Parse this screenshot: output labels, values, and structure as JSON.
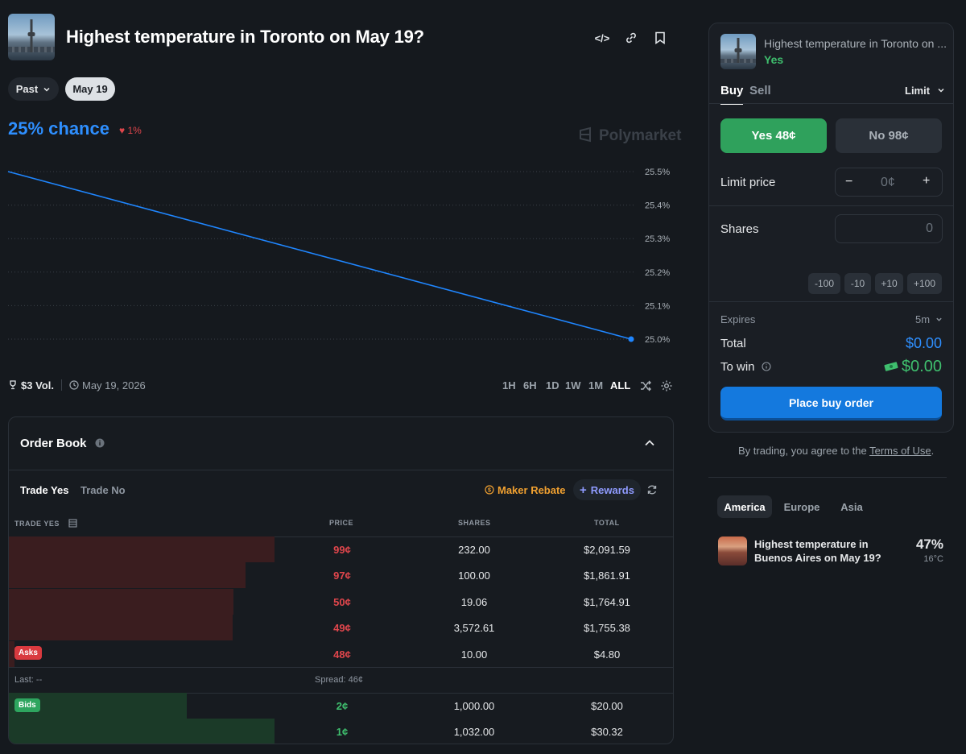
{
  "header": {
    "title": "Highest temperature in Toronto on May 19?",
    "code_icon": "</>",
    "link_icon": "🔗",
    "bookmark_icon": "🔖"
  },
  "filters": {
    "past_label": "Past",
    "date_label": "May 19"
  },
  "market": {
    "chance": "25% chance",
    "change": "1%",
    "watermark": "Polymarket"
  },
  "chart_data": {
    "type": "line",
    "x": [
      "start",
      "end"
    ],
    "series": [
      {
        "values": [
          25.5,
          25.0
        ]
      }
    ],
    "y_ticks": [
      "25.5%",
      "25.4%",
      "25.3%",
      "25.2%",
      "25.1%",
      "25.0%"
    ],
    "ylim": [
      25.0,
      25.5
    ],
    "grid": true,
    "color": "#1f86ff"
  },
  "stats": {
    "volume": "$3 Vol.",
    "date": "May 19, 2026"
  },
  "ranges": [
    "1H",
    "6H",
    "1D",
    "1W",
    "1M",
    "ALL"
  ],
  "order_book": {
    "title": "Order Book",
    "tabs": [
      "Trade Yes",
      "Trade No"
    ],
    "maker_rebate": "Maker Rebate",
    "rewards": "Rewards",
    "columns": [
      "TRADE YES",
      "PRICE",
      "SHARES",
      "TOTAL"
    ],
    "asks": [
      {
        "price": "99¢",
        "shares": "232.00",
        "total": "$2,091.59",
        "depth": 0.4
      },
      {
        "price": "97¢",
        "shares": "100.00",
        "total": "$1,861.91",
        "depth": 0.356
      },
      {
        "price": "50¢",
        "shares": "19.06",
        "total": "$1,764.91",
        "depth": 0.338
      },
      {
        "price": "49¢",
        "shares": "3,572.61",
        "total": "$1,755.38",
        "depth": 0.337
      },
      {
        "price": "48¢",
        "shares": "10.00",
        "total": "$4.80",
        "depth": 0.008
      }
    ],
    "asks_label": "Asks",
    "last": "Last: --",
    "spread": "Spread: 46¢",
    "bids_label": "Bids",
    "bids": [
      {
        "price": "2¢",
        "shares": "1,000.00",
        "total": "$20.00",
        "depth": 0.268
      },
      {
        "price": "1¢",
        "shares": "1,032.00",
        "total": "$30.32",
        "depth": 0.4
      }
    ]
  },
  "trade": {
    "market_title": "Highest temperature in Toronto on ...",
    "outcome": "Yes",
    "tab_buy": "Buy",
    "tab_sell": "Sell",
    "order_type": "Limit",
    "yes_button": "Yes 48¢",
    "no_button": "No 98¢",
    "limit_price_label": "Limit price",
    "limit_price_value": "0¢",
    "minus": "−",
    "plus": "+",
    "shares_label": "Shares",
    "shares_value": "0",
    "chips": [
      "-100",
      "-10",
      "+10",
      "+100"
    ],
    "expires_label": "Expires",
    "expires_value": "5m",
    "total_label": "Total",
    "total_value": "$0.00",
    "to_win_label": "To win",
    "to_win_value": "$0.00",
    "place_order": "Place buy order"
  },
  "terms": {
    "prefix": "By trading, you agree to the ",
    "link": "Terms of Use",
    "suffix": "."
  },
  "related": {
    "tabs": [
      "America",
      "Europe",
      "Asia"
    ],
    "item_title": "Highest temperature in Buenos Aires on May 19?",
    "item_pct": "47%",
    "item_temp": "16°C"
  }
}
